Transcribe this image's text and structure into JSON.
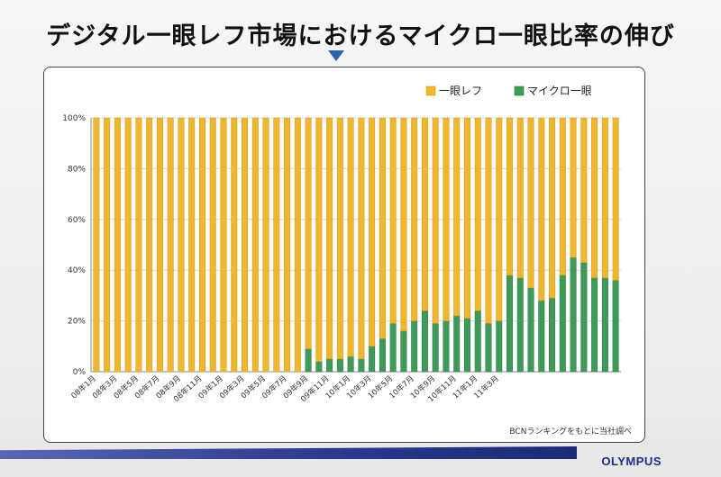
{
  "slide": {
    "title": "デジタル一眼レフ市場におけるマイクロ一眼比率の伸び",
    "source_note": "BCNランキングをもとに当社調べ",
    "logo": "OLYMPUS"
  },
  "colors": {
    "dslr": "#f0b630",
    "dslr_edge": "#d59a15",
    "micro": "#3e9a58",
    "micro_edge": "#2a7a40",
    "pointer": "#2a61b0"
  },
  "chart_data": {
    "type": "bar",
    "stacked": true,
    "ylim": [
      0,
      100
    ],
    "yticks": [
      "0%",
      "20%",
      "40%",
      "60%",
      "80%",
      "100%"
    ],
    "legend_position": "top-right",
    "x_tick_labels": [
      "08年1月",
      "08年3月",
      "08年5月",
      "08年7月",
      "08年9月",
      "08年11月",
      "09年1月",
      "09年3月",
      "09年5月",
      "09年7月",
      "09年9月",
      "09年11月",
      "10年1月",
      "10年3月",
      "10年5月",
      "10年7月",
      "10年9月",
      "10年11月",
      "11年1月",
      "11年3月"
    ],
    "series": [
      {
        "name": "一眼レフ",
        "values": [
          100,
          100,
          100,
          100,
          100,
          100,
          100,
          100,
          100,
          100,
          100,
          100,
          100,
          100,
          100,
          100,
          100,
          100,
          100,
          100,
          91,
          96,
          95,
          95,
          94,
          95,
          90,
          87,
          81,
          84,
          80,
          76,
          81,
          80,
          78,
          79,
          76,
          81,
          80,
          62,
          63,
          67,
          72,
          71,
          62,
          55,
          57,
          63,
          63,
          64
        ]
      },
      {
        "name": "マイクロ一眼",
        "values": [
          0,
          0,
          0,
          0,
          0,
          0,
          0,
          0,
          0,
          0,
          0,
          0,
          0,
          0,
          0,
          0,
          0,
          0,
          0,
          0,
          9,
          4,
          5,
          5,
          6,
          5,
          10,
          13,
          19,
          16,
          20,
          24,
          19,
          20,
          22,
          21,
          24,
          19,
          20,
          38,
          37,
          33,
          28,
          29,
          38,
          45,
          43,
          37,
          37,
          36
        ]
      }
    ]
  }
}
